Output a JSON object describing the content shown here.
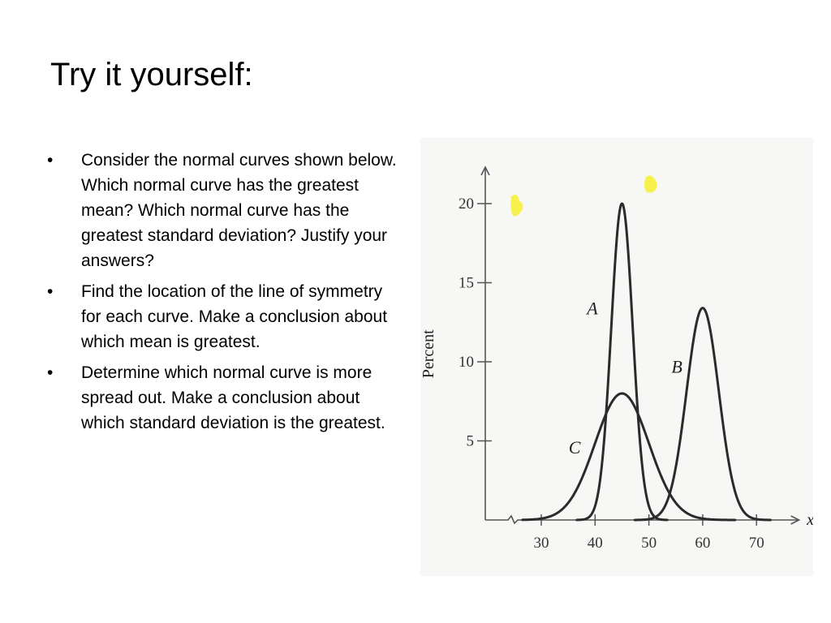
{
  "slide": {
    "title": "Try it yourself:",
    "bullet_glyph": "•",
    "bullets": [
      "Consider the normal curves shown below.  Which normal curve has the greatest mean?  Which normal curve has the greatest standard deviation?  Justify your answers?",
      "Find the location of the line of symmetry for each curve.  Make a conclusion about which mean is greatest.",
      "Determine which normal curve is more spread out.  Make a conclusion about which standard deviation is the greatest."
    ]
  },
  "chart_data": {
    "type": "line",
    "xlabel": "x",
    "ylabel": "Percent",
    "x_ticks": [
      30,
      40,
      50,
      60,
      70
    ],
    "y_ticks": [
      5,
      10,
      15,
      20
    ],
    "xlim": [
      25,
      77
    ],
    "ylim": [
      0,
      22
    ],
    "grid": false,
    "axis_break_on_x": true,
    "series": [
      {
        "name": "A",
        "mean": 45,
        "std_dev": 2,
        "peak": 20,
        "color": "#2b2b2b"
      },
      {
        "name": "B",
        "mean": 60,
        "std_dev": 3,
        "peak": 13.4,
        "color": "#2b2b2b"
      },
      {
        "name": "C",
        "mean": 45,
        "std_dev": 5,
        "peak": 8,
        "color": "#2b2b2b"
      }
    ],
    "colors": {
      "paper": "#f7f7f5",
      "axis": "#555555",
      "curve": "#2b2b2b",
      "highlight": "#f5ef3a"
    }
  }
}
